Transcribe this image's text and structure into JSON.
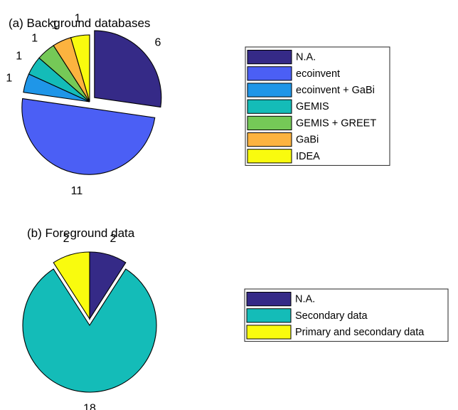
{
  "chart_data": [
    {
      "type": "pie",
      "title": "(a) Background databases",
      "legend_placement": "right",
      "slices": [
        {
          "name": "N.A.",
          "value": 6,
          "label": "6",
          "color": "#352a87",
          "exploded": true
        },
        {
          "name": "ecoinvent",
          "value": 11,
          "label": "11",
          "color": "#4b5ff5",
          "exploded": true
        },
        {
          "name": "ecoinvent + GaBi",
          "value": 1,
          "label": "1",
          "color": "#1f96e8",
          "exploded": false
        },
        {
          "name": "GEMIS",
          "value": 1,
          "label": "1",
          "color": "#14bcb8",
          "exploded": false
        },
        {
          "name": "GEMIS + GREET",
          "value": 1,
          "label": "1",
          "color": "#75c957",
          "exploded": false
        },
        {
          "name": "GaBi",
          "value": 1,
          "label": "1",
          "color": "#fcb33f",
          "exploded": false
        },
        {
          "name": "IDEA",
          "value": 1,
          "label": "1",
          "color": "#f9fb0e",
          "exploded": false
        }
      ]
    },
    {
      "type": "pie",
      "title": "(b) Foreground data",
      "legend_placement": "right",
      "slices": [
        {
          "name": "N.A.",
          "value": 2,
          "label": "2",
          "color": "#352a87",
          "exploded": false
        },
        {
          "name": "Secondary data",
          "value": 18,
          "label": "18",
          "color": "#14bcb8",
          "exploded": true
        },
        {
          "name": "Primary and secondary data",
          "value": 2,
          "label": "2",
          "color": "#f9fb0e",
          "exploded": false
        }
      ]
    }
  ]
}
